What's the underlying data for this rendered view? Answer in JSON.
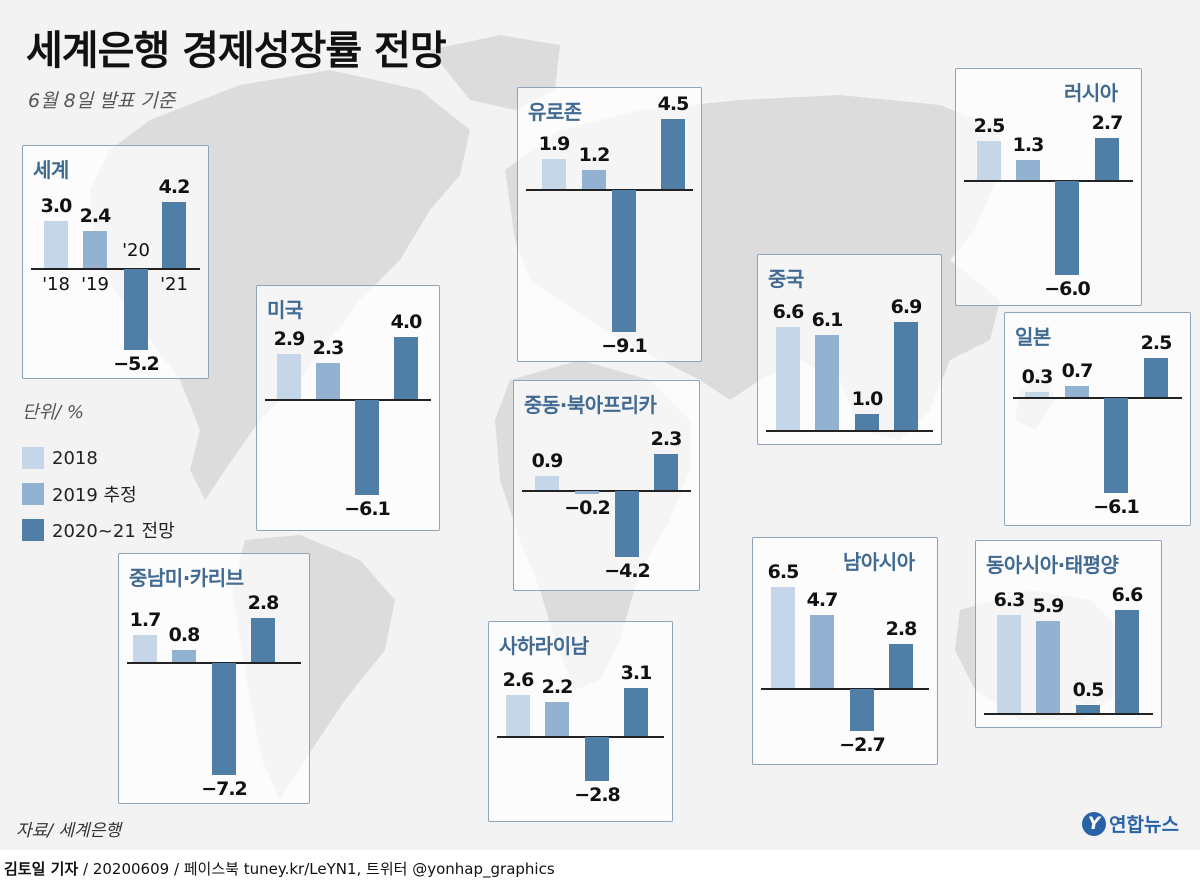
{
  "title": "세계은행 경제성장률 전망",
  "subtitle": "6월 8일 발표 기준",
  "source": "자료/ 세계은행",
  "footer": {
    "author": "김토일 기자",
    "rest": " / 20200609 / 페이스북 tuney.kr/LeYN1, 트위터 @yonhap_graphics"
  },
  "logo": {
    "mark": "Y",
    "text": "연합뉴스"
  },
  "legend": {
    "unit": "단위/ %",
    "items": [
      {
        "label": "2018",
        "color": "#c6d6e9"
      },
      {
        "label": "2019 추정",
        "color": "#93b2d1"
      },
      {
        "label": "2020~21 전망",
        "color": "#4f7ea7"
      }
    ]
  },
  "chart_data": [
    {
      "type": "bar",
      "title": "세계",
      "categories": [
        "'18",
        "'19",
        "'20",
        "'21"
      ],
      "values": [
        3.0,
        2.4,
        -5.2,
        4.2
      ],
      "value_labels": [
        "3.0",
        "2.4",
        "−5.2",
        "4.2"
      ],
      "unit": "%"
    },
    {
      "type": "bar",
      "title": "미국",
      "categories": [
        "2018",
        "2019",
        "2020",
        "2021"
      ],
      "values": [
        2.9,
        2.3,
        -6.1,
        4.0
      ],
      "value_labels": [
        "2.9",
        "2.3",
        "−6.1",
        "4.0"
      ],
      "unit": "%"
    },
    {
      "type": "bar",
      "title": "유로존",
      "categories": [
        "2018",
        "2019",
        "2020",
        "2021"
      ],
      "values": [
        1.9,
        1.2,
        -9.1,
        4.5
      ],
      "value_labels": [
        "1.9",
        "1.2",
        "−9.1",
        "4.5"
      ],
      "unit": "%"
    },
    {
      "type": "bar",
      "title": "중국",
      "categories": [
        "2018",
        "2019",
        "2020",
        "2021"
      ],
      "values": [
        6.6,
        6.1,
        1.0,
        6.9
      ],
      "value_labels": [
        "6.6",
        "6.1",
        "1.0",
        "6.9"
      ],
      "unit": "%"
    },
    {
      "type": "bar",
      "title": "러시아",
      "categories": [
        "2018",
        "2019",
        "2020",
        "2021"
      ],
      "values": [
        2.5,
        1.3,
        -6.0,
        2.7
      ],
      "value_labels": [
        "2.5",
        "1.3",
        "−6.0",
        "2.7"
      ],
      "unit": "%"
    },
    {
      "type": "bar",
      "title": "일본",
      "categories": [
        "2018",
        "2019",
        "2020",
        "2021"
      ],
      "values": [
        0.3,
        0.7,
        -6.1,
        2.5
      ],
      "value_labels": [
        "0.3",
        "0.7",
        "−6.1",
        "2.5"
      ],
      "unit": "%"
    },
    {
      "type": "bar",
      "title": "중동·북아프리카",
      "categories": [
        "2018",
        "2019",
        "2020",
        "2021"
      ],
      "values": [
        0.9,
        -0.2,
        -4.2,
        2.3
      ],
      "value_labels": [
        "0.9",
        "−0.2",
        "−4.2",
        "2.3"
      ],
      "unit": "%"
    },
    {
      "type": "bar",
      "title": "중남미·카리브",
      "categories": [
        "2018",
        "2019",
        "2020",
        "2021"
      ],
      "values": [
        1.7,
        0.8,
        -7.2,
        2.8
      ],
      "value_labels": [
        "1.7",
        "0.8",
        "−7.2",
        "2.8"
      ],
      "unit": "%"
    },
    {
      "type": "bar",
      "title": "사하라이남",
      "categories": [
        "2018",
        "2019",
        "2020",
        "2021"
      ],
      "values": [
        2.6,
        2.2,
        -2.8,
        3.1
      ],
      "value_labels": [
        "2.6",
        "2.2",
        "−2.8",
        "3.1"
      ],
      "unit": "%"
    },
    {
      "type": "bar",
      "title": "남아시아",
      "categories": [
        "2018",
        "2019",
        "2020",
        "2021"
      ],
      "values": [
        6.5,
        4.7,
        -2.7,
        2.8
      ],
      "value_labels": [
        "6.5",
        "4.7",
        "−2.7",
        "2.8"
      ],
      "unit": "%"
    },
    {
      "type": "bar",
      "title": "동아시아·태평양",
      "categories": [
        "2018",
        "2019",
        "2020",
        "2021"
      ],
      "values": [
        6.3,
        5.9,
        0.5,
        6.6
      ],
      "value_labels": [
        "6.3",
        "5.9",
        "0.5",
        "6.6"
      ],
      "unit": "%"
    }
  ]
}
